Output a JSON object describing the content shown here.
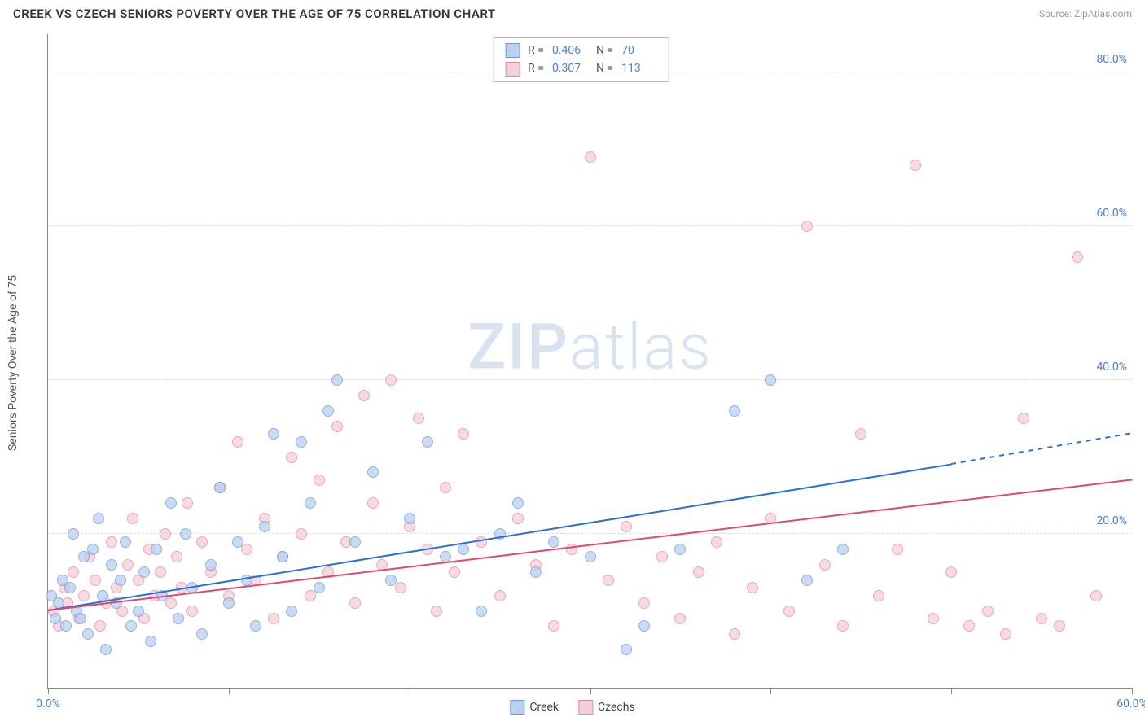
{
  "header": {
    "title": "CREEK VS CZECH SENIORS POVERTY OVER THE AGE OF 75 CORRELATION CHART",
    "source_prefix": "Source: ",
    "source_link": "ZipAtlas.com"
  },
  "chart": {
    "type": "scatter",
    "y_axis_label": "Seniors Poverty Over the Age of 75",
    "xlim": [
      0,
      60
    ],
    "ylim": [
      0,
      85
    ],
    "x_ticks": [
      0,
      10,
      20,
      30,
      40,
      50,
      60
    ],
    "x_tick_labels": [
      "0.0%",
      "",
      "",
      "",
      "",
      "",
      "60.0%"
    ],
    "y_ticks": [
      20,
      40,
      60,
      80
    ],
    "y_tick_labels": [
      "20.0%",
      "40.0%",
      "60.0%",
      "80.0%"
    ],
    "background_color": "#ffffff",
    "grid_color": "#dddddd",
    "point_radius": 7,
    "trend_line_width": 2,
    "watermark": "ZIPatlas",
    "stats": [
      {
        "series": "creek",
        "R_label": "R =",
        "R": "0.406",
        "N_label": "N =",
        "N": "70"
      },
      {
        "series": "czechs",
        "R_label": "R =",
        "R": "0.307",
        "N_label": "N =",
        "N": "113"
      }
    ],
    "series": {
      "creek": {
        "label": "Creek",
        "fill": "#b9d0ef",
        "stroke": "#6d9add",
        "line_color": "#2a6fd6",
        "trend": {
          "x0": 0,
          "y0": 10,
          "x1": 50,
          "y1": 29,
          "x1_dash": 60,
          "y1_dash": 33
        },
        "points": [
          [
            0.2,
            12
          ],
          [
            0.4,
            9
          ],
          [
            0.6,
            11
          ],
          [
            0.8,
            14
          ],
          [
            1.0,
            8
          ],
          [
            1.2,
            13
          ],
          [
            1.4,
            20
          ],
          [
            1.6,
            10
          ],
          [
            1.8,
            9
          ],
          [
            2.0,
            17
          ],
          [
            2.2,
            7
          ],
          [
            2.5,
            18
          ],
          [
            2.8,
            22
          ],
          [
            3.0,
            12
          ],
          [
            3.2,
            5
          ],
          [
            3.5,
            16
          ],
          [
            3.8,
            11
          ],
          [
            4.0,
            14
          ],
          [
            4.3,
            19
          ],
          [
            4.6,
            8
          ],
          [
            5.0,
            10
          ],
          [
            5.3,
            15
          ],
          [
            5.7,
            6
          ],
          [
            6.0,
            18
          ],
          [
            6.3,
            12
          ],
          [
            6.8,
            24
          ],
          [
            7.2,
            9
          ],
          [
            7.6,
            20
          ],
          [
            8.0,
            13
          ],
          [
            8.5,
            7
          ],
          [
            9.0,
            16
          ],
          [
            9.5,
            26
          ],
          [
            10,
            11
          ],
          [
            10.5,
            19
          ],
          [
            11,
            14
          ],
          [
            11.5,
            8
          ],
          [
            12,
            21
          ],
          [
            12.5,
            33
          ],
          [
            13,
            17
          ],
          [
            13.5,
            10
          ],
          [
            14,
            32
          ],
          [
            14.5,
            24
          ],
          [
            15,
            13
          ],
          [
            15.5,
            36
          ],
          [
            16,
            40
          ],
          [
            17,
            19
          ],
          [
            18,
            28
          ],
          [
            19,
            14
          ],
          [
            20,
            22
          ],
          [
            21,
            32
          ],
          [
            22,
            17
          ],
          [
            23,
            18
          ],
          [
            24,
            10
          ],
          [
            25,
            20
          ],
          [
            26,
            24
          ],
          [
            27,
            15
          ],
          [
            28,
            19
          ],
          [
            30,
            17
          ],
          [
            32,
            5
          ],
          [
            33,
            8
          ],
          [
            35,
            18
          ],
          [
            38,
            36
          ],
          [
            40,
            40
          ],
          [
            42,
            14
          ],
          [
            44,
            18
          ]
        ]
      },
      "czechs": {
        "label": "Czechs",
        "fill": "#f5cfd8",
        "stroke": "#e48aa3",
        "line_color": "#e0486f",
        "trend": {
          "x0": 0,
          "y0": 10,
          "x1": 60,
          "y1": 27
        },
        "points": [
          [
            0.3,
            10
          ],
          [
            0.6,
            8
          ],
          [
            0.9,
            13
          ],
          [
            1.1,
            11
          ],
          [
            1.4,
            15
          ],
          [
            1.7,
            9
          ],
          [
            2.0,
            12
          ],
          [
            2.3,
            17
          ],
          [
            2.6,
            14
          ],
          [
            2.9,
            8
          ],
          [
            3.2,
            11
          ],
          [
            3.5,
            19
          ],
          [
            3.8,
            13
          ],
          [
            4.1,
            10
          ],
          [
            4.4,
            16
          ],
          [
            4.7,
            22
          ],
          [
            5.0,
            14
          ],
          [
            5.3,
            9
          ],
          [
            5.6,
            18
          ],
          [
            5.9,
            12
          ],
          [
            6.2,
            15
          ],
          [
            6.5,
            20
          ],
          [
            6.8,
            11
          ],
          [
            7.1,
            17
          ],
          [
            7.4,
            13
          ],
          [
            7.7,
            24
          ],
          [
            8.0,
            10
          ],
          [
            8.5,
            19
          ],
          [
            9.0,
            15
          ],
          [
            9.5,
            26
          ],
          [
            10,
            12
          ],
          [
            10.5,
            32
          ],
          [
            11,
            18
          ],
          [
            11.5,
            14
          ],
          [
            12,
            22
          ],
          [
            12.5,
            9
          ],
          [
            13,
            17
          ],
          [
            13.5,
            30
          ],
          [
            14,
            20
          ],
          [
            14.5,
            12
          ],
          [
            15,
            27
          ],
          [
            15.5,
            15
          ],
          [
            16,
            34
          ],
          [
            16.5,
            19
          ],
          [
            17,
            11
          ],
          [
            17.5,
            38
          ],
          [
            18,
            24
          ],
          [
            18.5,
            16
          ],
          [
            19,
            40
          ],
          [
            19.5,
            13
          ],
          [
            20,
            21
          ],
          [
            20.5,
            35
          ],
          [
            21,
            18
          ],
          [
            21.5,
            10
          ],
          [
            22,
            26
          ],
          [
            22.5,
            15
          ],
          [
            23,
            33
          ],
          [
            24,
            19
          ],
          [
            25,
            12
          ],
          [
            26,
            22
          ],
          [
            27,
            16
          ],
          [
            28,
            8
          ],
          [
            29,
            18
          ],
          [
            30,
            69
          ],
          [
            31,
            14
          ],
          [
            32,
            21
          ],
          [
            33,
            11
          ],
          [
            34,
            17
          ],
          [
            35,
            9
          ],
          [
            36,
            15
          ],
          [
            37,
            19
          ],
          [
            38,
            7
          ],
          [
            39,
            13
          ],
          [
            40,
            22
          ],
          [
            41,
            10
          ],
          [
            42,
            60
          ],
          [
            43,
            16
          ],
          [
            44,
            8
          ],
          [
            45,
            33
          ],
          [
            46,
            12
          ],
          [
            47,
            18
          ],
          [
            48,
            68
          ],
          [
            49,
            9
          ],
          [
            50,
            15
          ],
          [
            51,
            8
          ],
          [
            52,
            10
          ],
          [
            53,
            7
          ],
          [
            54,
            35
          ],
          [
            55,
            9
          ],
          [
            56,
            8
          ],
          [
            57,
            56
          ],
          [
            58,
            12
          ]
        ]
      }
    },
    "legend": [
      {
        "series": "creek",
        "label": "Creek"
      },
      {
        "series": "czechs",
        "label": "Czechs"
      }
    ]
  }
}
